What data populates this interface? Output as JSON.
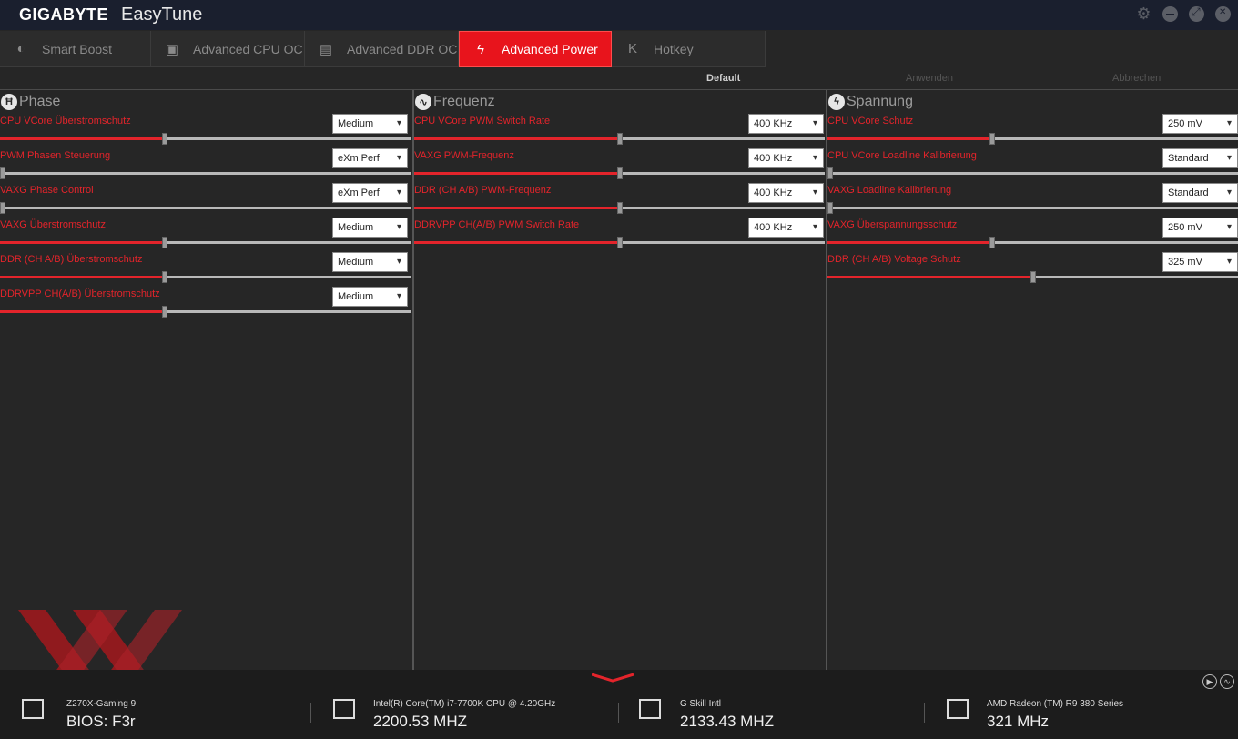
{
  "titlebar": {
    "brand": "GIGABYTE",
    "app_name": "EasyTune"
  },
  "tabs": [
    {
      "label": "Smart Boost",
      "icon": "toggle-icon",
      "active": false
    },
    {
      "label": "Advanced CPU OC",
      "icon": "cpu-icon",
      "active": false
    },
    {
      "label": "Advanced DDR OC",
      "icon": "memory-icon",
      "active": false
    },
    {
      "label": "Advanced Power",
      "icon": "power-icon",
      "active": true
    },
    {
      "label": "Hotkey",
      "icon": "keyboard-key-icon",
      "active": false
    }
  ],
  "actions": {
    "default": "Default",
    "apply": "Anwenden",
    "cancel": "Abbrechen"
  },
  "columns": [
    {
      "title": "Phase",
      "icon": "phase-icon",
      "rows": [
        {
          "label": "CPU VCore Überstromschutz",
          "value": "Medium",
          "level": 0.4
        },
        {
          "label": "PWM Phasen Steuerung",
          "value": "eXm Perf",
          "level": 0.0
        },
        {
          "label": "VAXG Phase Control",
          "value": "eXm Perf",
          "level": 0.0
        },
        {
          "label": "VAXG Überstromschutz",
          "value": "Medium",
          "level": 0.4
        },
        {
          "label": "DDR (CH A/B) Überstromschutz",
          "value": "Medium",
          "level": 0.4
        },
        {
          "label": "DDRVPP CH(A/B) Überstromschutz",
          "value": "Medium",
          "level": 0.4
        }
      ]
    },
    {
      "title": "Frequenz",
      "icon": "frequency-icon",
      "rows": [
        {
          "label": "CPU VCore PWM Switch Rate",
          "value": "400 KHz",
          "level": 0.5
        },
        {
          "label": "VAXG PWM-Frequenz",
          "value": "400 KHz",
          "level": 0.5
        },
        {
          "label": "DDR (CH A/B) PWM-Frequenz",
          "value": "400 KHz",
          "level": 0.5
        },
        {
          "label": "DDRVPP CH(A/B) PWM Switch Rate",
          "value": "400 KHz",
          "level": 0.5
        }
      ]
    },
    {
      "title": "Spannung",
      "icon": "voltage-icon",
      "rows": [
        {
          "label": "CPU VCore Schutz",
          "value": "250 mV",
          "level": 0.4
        },
        {
          "label": "CPU VCore Loadline Kalibrierung",
          "value": "Standard",
          "level": 0.0
        },
        {
          "label": "VAXG Loadline Kalibrierung",
          "value": "Standard",
          "level": 0.0
        },
        {
          "label": "VAXG Überspannungsschutz",
          "value": "250 mV",
          "level": 0.4
        },
        {
          "label": "DDR (CH A/B) Voltage Schutz",
          "value": "325 mV",
          "level": 0.5
        }
      ]
    }
  ],
  "bottom": {
    "items": [
      {
        "name": "Z270X-Gaming 9",
        "value": "BIOS: F3r",
        "icon": "motherboard-icon"
      },
      {
        "name": "Intel(R) Core(TM) i7-7700K CPU @ 4.20GHz",
        "value": "2200.53 MHZ",
        "icon": "cpu-chip-icon"
      },
      {
        "name": "G Skill Intl",
        "value": "2133.43 MHZ",
        "icon": "ram-icon"
      },
      {
        "name": "AMD Radeon (TM) R9 380 Series",
        "value": "321 MHz",
        "icon": "gpu-icon"
      }
    ]
  },
  "colors": {
    "accent": "#e8141c",
    "label": "#e3242b",
    "background": "#262626",
    "titlebar": "#1a1f2e"
  }
}
